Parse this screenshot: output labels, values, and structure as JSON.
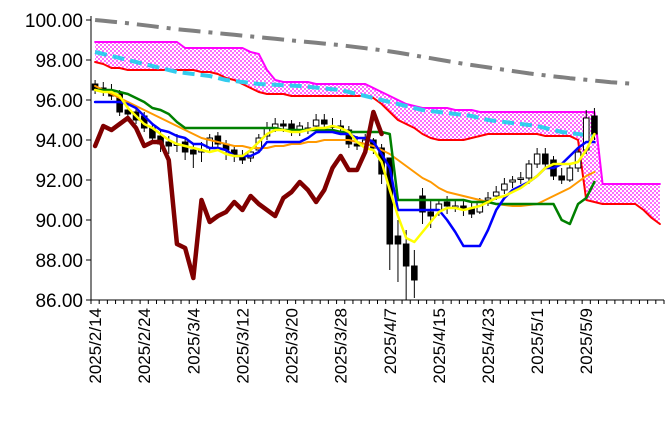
{
  "chart_data": {
    "type": "line",
    "title": "",
    "xlabel": "",
    "ylabel": "",
    "ylim": [
      86.0,
      100.0
    ],
    "ytick_labels": [
      "100.00",
      "98.00",
      "96.00",
      "94.00",
      "92.00",
      "90.00",
      "88.00",
      "86.00"
    ],
    "ytick_values": [
      100,
      98,
      96,
      94,
      92,
      90,
      88,
      86
    ],
    "xtick_labels": [
      "2025/2/14",
      "2025/2/24",
      "2025/3/4",
      "2025/3/12",
      "2025/3/20",
      "2025/3/28",
      "2025/4/7",
      "2025/4/15",
      "2025/4/23",
      "2025/5/1",
      "2025/5/9"
    ],
    "xtick_index": [
      0,
      6,
      12,
      18,
      24,
      30,
      36,
      42,
      48,
      54,
      60
    ],
    "n_days": 70,
    "grid": "off",
    "legend": "none",
    "colors": {
      "candle_up": "#ffffff",
      "candle_down": "#000000",
      "cloud_fill": "#ff00ff",
      "span_a": "#ff00ff",
      "span_b": "#ff0000",
      "conversion": "#0000ff",
      "base": "#008000",
      "lagging": "#800000",
      "moving_avg_short": "#ffff00",
      "moving_avg_mid": "#ff9900",
      "moving_avg_long": "#808080",
      "moving_avg_cyan": "#33ccee"
    },
    "candles": {
      "open": [
        96.8,
        96.6,
        96.5,
        96.3,
        95.5,
        95.4,
        95.2,
        94.6,
        94.2,
        93.9,
        93.8,
        93.9,
        93.5,
        93.4,
        93.6,
        94.2,
        93.8,
        93.5,
        93.2,
        93.1,
        93.5,
        94.2,
        94.6,
        94.8,
        94.8,
        94.4,
        94.6,
        94.7,
        95.0,
        94.7,
        94.7,
        94.5,
        93.8,
        93.8,
        94.0,
        93.6,
        93.1,
        89.2,
        88.8,
        87.7,
        91.2,
        90.4,
        90.5,
        90.9,
        90.7,
        90.7,
        90.6,
        90.4,
        91.0,
        91.2,
        91.5,
        91.9,
        92.1,
        92.1,
        92.8,
        93.3,
        93.0,
        92.2,
        92.0,
        92.6,
        93.5,
        95.2
      ],
      "close": [
        96.5,
        96.4,
        96.2,
        95.4,
        95.3,
        95.0,
        94.6,
        94.1,
        93.8,
        93.7,
        93.8,
        93.4,
        93.3,
        93.5,
        94.1,
        93.8,
        93.5,
        93.2,
        93.0,
        93.4,
        94.1,
        94.6,
        94.8,
        94.7,
        94.5,
        94.7,
        94.6,
        95.0,
        94.8,
        94.7,
        94.6,
        93.8,
        93.7,
        94.0,
        93.6,
        92.3,
        88.8,
        88.8,
        87.7,
        87.0,
        90.4,
        90.2,
        90.8,
        90.7,
        90.7,
        90.6,
        90.3,
        90.9,
        91.1,
        91.4,
        91.8,
        92.0,
        92.1,
        92.8,
        93.3,
        92.8,
        92.2,
        92.0,
        92.6,
        93.4,
        95.1,
        94.3
      ],
      "high": [
        97.0,
        96.9,
        96.8,
        96.5,
        95.7,
        95.6,
        95.4,
        94.8,
        94.5,
        94.2,
        94.3,
        94.1,
        93.8,
        93.9,
        94.3,
        94.4,
        94.0,
        93.7,
        93.5,
        93.6,
        94.3,
        94.9,
        95.1,
        95.0,
        95.0,
        94.9,
        94.9,
        95.3,
        95.3,
        95.1,
        95.0,
        94.7,
        94.2,
        94.3,
        94.1,
        93.8,
        92.4,
        90.0,
        89.5,
        88.5,
        91.6,
        91.0,
        91.0,
        91.2,
        91.0,
        91.0,
        90.9,
        91.1,
        91.4,
        91.7,
        92.1,
        92.2,
        92.4,
        93.0,
        93.6,
        93.6,
        93.2,
        92.6,
        92.8,
        93.6,
        95.5,
        95.6
      ],
      "low": [
        96.3,
        96.2,
        96.0,
        95.2,
        95.0,
        94.8,
        94.4,
        93.8,
        93.4,
        93.3,
        93.4,
        93.0,
        92.6,
        92.9,
        93.4,
        93.5,
        93.0,
        92.9,
        92.8,
        92.9,
        93.4,
        94.0,
        94.4,
        94.4,
        94.2,
        94.2,
        94.3,
        94.5,
        94.5,
        94.4,
        94.3,
        93.6,
        93.5,
        93.5,
        93.3,
        91.8,
        87.5,
        86.9,
        86.0,
        86.1,
        89.8,
        89.6,
        90.2,
        90.3,
        90.4,
        90.2,
        90.1,
        90.3,
        90.7,
        91.0,
        91.3,
        91.6,
        91.8,
        91.8,
        92.6,
        92.6,
        92.0,
        91.8,
        91.9,
        92.4,
        93.3,
        94.0
      ]
    },
    "series": [
      {
        "key": "span_a",
        "values": [
          98.9,
          98.9,
          98.9,
          98.9,
          98.9,
          98.9,
          98.9,
          98.9,
          98.9,
          98.9,
          98.9,
          98.6,
          98.6,
          98.6,
          98.6,
          98.6,
          98.6,
          98.6,
          98.6,
          98.4,
          98.3,
          97.5,
          97.0,
          96.9,
          96.9,
          96.9,
          96.9,
          96.8,
          96.8,
          96.8,
          96.8,
          96.8,
          96.8,
          96.8,
          96.6,
          96.4,
          96.2,
          96.0,
          95.8,
          95.7,
          95.6,
          95.6,
          95.6,
          95.6,
          95.5,
          95.5,
          95.5,
          95.4,
          95.4,
          95.4,
          95.4,
          95.4,
          95.4,
          95.4,
          95.4,
          95.4,
          95.4,
          95.4,
          95.4,
          95.4,
          95.4,
          95.4,
          91.8,
          91.8,
          91.8,
          91.8,
          91.8,
          91.8,
          91.8,
          91.8
        ]
      },
      {
        "key": "span_b",
        "values": [
          97.9,
          97.8,
          97.6,
          97.6,
          97.5,
          97.5,
          97.5,
          97.5,
          97.5,
          97.5,
          97.5,
          97.5,
          97.5,
          97.4,
          97.4,
          97.3,
          97.1,
          97.0,
          96.8,
          96.6,
          96.4,
          96.3,
          96.3,
          96.3,
          96.2,
          96.2,
          96.2,
          96.2,
          96.2,
          96.2,
          96.2,
          96.2,
          96.2,
          96.2,
          96.1,
          95.8,
          95.4,
          95.0,
          94.8,
          94.6,
          94.3,
          94.1,
          94.0,
          94.0,
          94.0,
          94.0,
          94.1,
          94.2,
          94.3,
          94.3,
          94.3,
          94.3,
          94.3,
          94.3,
          94.3,
          94.2,
          94.2,
          94.2,
          94.2,
          94.0,
          91.0,
          90.9,
          90.8,
          90.8,
          90.8,
          90.8,
          90.8,
          90.5,
          90.1,
          89.8
        ]
      },
      {
        "key": "moving_avg_long",
        "dash": "22,8,4,8",
        "width": 4,
        "values": [
          100.0,
          99.96,
          99.92,
          99.88,
          99.84,
          99.79,
          99.74,
          99.69,
          99.64,
          99.59,
          99.54,
          99.5,
          99.46,
          99.42,
          99.38,
          99.34,
          99.3,
          99.26,
          99.22,
          99.18,
          99.14,
          99.1,
          99.06,
          99.02,
          98.98,
          98.94,
          98.9,
          98.86,
          98.82,
          98.78,
          98.74,
          98.69,
          98.64,
          98.59,
          98.54,
          98.49,
          98.43,
          98.37,
          98.3,
          98.23,
          98.16,
          98.09,
          98.02,
          97.95,
          97.88,
          97.81,
          97.75,
          97.69,
          97.63,
          97.57,
          97.51,
          97.45,
          97.39,
          97.33,
          97.28,
          97.23,
          97.18,
          97.14,
          97.09,
          97.05,
          97.01,
          96.97,
          96.93,
          96.89,
          96.86,
          96.83,
          96.8
        ]
      },
      {
        "key": "moving_avg_cyan",
        "dash": "12,6",
        "width": 4,
        "values": [
          98.4,
          98.3,
          98.2,
          98.1,
          98.0,
          97.9,
          97.8,
          97.7,
          97.6,
          97.5,
          97.4,
          97.35,
          97.3,
          97.25,
          97.2,
          97.1,
          97.0,
          96.95,
          96.9,
          96.85,
          96.8,
          96.78,
          96.76,
          96.74,
          96.72,
          96.7,
          96.66,
          96.62,
          96.58,
          96.54,
          96.5,
          96.4,
          96.3,
          96.2,
          96.1,
          96.0,
          95.9,
          95.8,
          95.7,
          95.6,
          95.5,
          95.45,
          95.4,
          95.35,
          95.3,
          95.25,
          95.2,
          95.1,
          95.0,
          94.95,
          94.9,
          94.85,
          94.8,
          94.75,
          94.7,
          94.6,
          94.5,
          94.4,
          94.35,
          94.3,
          94.25,
          94.2
        ]
      },
      {
        "key": "base",
        "width": 2.5,
        "values": [
          96.5,
          96.5,
          96.5,
          96.4,
          96.3,
          96.1,
          95.9,
          95.6,
          95.5,
          95.3,
          94.9,
          94.6,
          94.6,
          94.6,
          94.6,
          94.6,
          94.6,
          94.6,
          94.6,
          94.6,
          94.6,
          94.6,
          94.6,
          94.5,
          94.5,
          94.5,
          94.5,
          94.5,
          94.5,
          94.5,
          94.4,
          94.4,
          94.4,
          94.4,
          94.4,
          94.4,
          94.3,
          91.0,
          91.0,
          91.0,
          91.0,
          91.0,
          91.0,
          91.0,
          91.0,
          91.0,
          90.9,
          90.9,
          90.9,
          90.8,
          90.8,
          90.8,
          90.8,
          90.8,
          90.8,
          90.8,
          90.8,
          90.0,
          89.8,
          90.8,
          91.1,
          91.9
        ]
      },
      {
        "key": "conversion",
        "width": 2.5,
        "values": [
          95.9,
          95.9,
          95.9,
          95.9,
          95.8,
          95.6,
          95.2,
          94.8,
          94.5,
          94.4,
          94.2,
          94.1,
          93.8,
          93.8,
          93.6,
          93.6,
          93.5,
          93.2,
          93.2,
          93.2,
          93.4,
          93.9,
          93.9,
          93.9,
          93.9,
          93.9,
          94.1,
          94.4,
          94.4,
          94.4,
          94.3,
          94.3,
          94.1,
          94.1,
          93.9,
          93.3,
          92.6,
          90.5,
          90.5,
          90.5,
          90.5,
          90.5,
          90.5,
          90.0,
          89.4,
          88.7,
          88.7,
          88.7,
          89.5,
          90.5,
          91.1,
          91.5,
          91.7,
          91.9,
          92.2,
          92.6,
          92.6,
          92.8,
          93.2,
          93.6,
          93.9,
          93.9
        ]
      },
      {
        "key": "moving_avg_mid",
        "width": 2,
        "values": [
          96.7,
          96.5,
          96.3,
          96.1,
          95.9,
          95.7,
          95.5,
          95.3,
          95.1,
          94.9,
          94.7,
          94.5,
          94.3,
          94.1,
          94.0,
          93.9,
          93.8,
          93.7,
          93.7,
          93.6,
          93.6,
          93.6,
          93.7,
          93.7,
          93.8,
          93.8,
          93.9,
          93.9,
          94.0,
          94.0,
          94.0,
          94.0,
          93.9,
          93.8,
          93.7,
          93.5,
          93.3,
          93.0,
          92.7,
          92.4,
          92.1,
          91.9,
          91.6,
          91.4,
          91.3,
          91.2,
          91.1,
          91.0,
          90.9,
          90.8,
          90.75,
          90.7,
          90.7,
          90.75,
          90.8,
          91.0,
          91.2,
          91.4,
          91.6,
          91.9,
          92.2,
          92.4
        ]
      },
      {
        "key": "moving_avg_short",
        "width": 2.5,
        "values": [
          96.5,
          96.4,
          96.4,
          96.2,
          95.6,
          95.2,
          94.8,
          94.6,
          94.3,
          94.0,
          93.8,
          93.7,
          93.6,
          93.5,
          93.4,
          93.5,
          93.3,
          93.2,
          93.2,
          93.5,
          93.9,
          94.3,
          94.5,
          94.5,
          94.4,
          94.4,
          94.5,
          94.6,
          94.6,
          94.7,
          94.6,
          94.4,
          93.9,
          93.6,
          93.5,
          92.9,
          91.5,
          90.2,
          89.1,
          88.9,
          89.4,
          89.9,
          90.4,
          90.6,
          90.6,
          90.5,
          90.6,
          90.7,
          90.9,
          91.1,
          91.2,
          91.4,
          91.6,
          91.9,
          92.2,
          92.6,
          92.8,
          92.8,
          92.8,
          92.9,
          93.5,
          94.3
        ]
      },
      {
        "key": "lagging",
        "width": 4.5,
        "start": 0,
        "values": [
          93.7,
          94.7,
          94.5,
          94.8,
          95.1,
          94.6,
          93.7,
          93.9,
          93.9,
          93.0,
          88.8,
          88.6,
          87.1,
          91.0,
          89.9,
          90.2,
          90.4,
          90.9,
          90.5,
          91.2,
          90.8,
          90.5,
          90.2,
          91.1,
          91.4,
          91.9,
          91.5,
          90.9,
          91.5,
          92.6,
          93.2,
          92.5,
          92.5,
          93.4,
          95.4,
          94.3
        ]
      }
    ]
  }
}
